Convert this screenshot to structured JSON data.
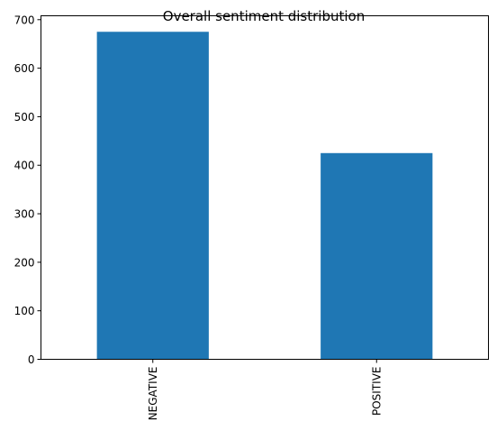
{
  "chart_data": {
    "type": "bar",
    "title": "Overall sentiment distribution",
    "xlabel": "",
    "ylabel": "",
    "categories": [
      "NEGATIVE",
      "POSITIVE"
    ],
    "values": [
      675,
      425
    ],
    "ylim": [
      0,
      708
    ],
    "yticks": [
      0,
      100,
      200,
      300,
      400,
      500,
      600,
      700
    ],
    "grid": false,
    "bar_color": "#1f77b4"
  }
}
